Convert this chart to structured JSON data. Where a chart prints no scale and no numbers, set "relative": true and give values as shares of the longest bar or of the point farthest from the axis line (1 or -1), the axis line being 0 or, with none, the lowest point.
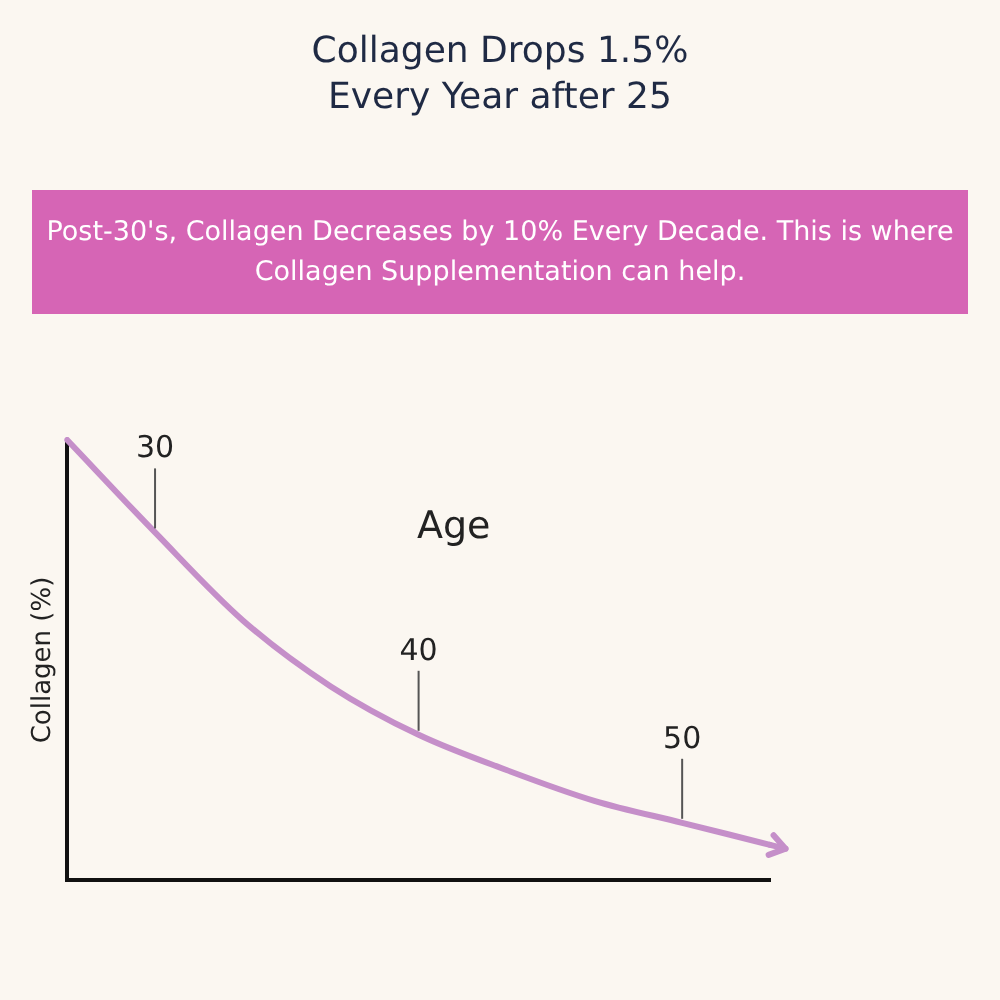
{
  "chart_data": {
    "type": "line",
    "title": "Collagen Drops 1.5% Every Year after 25",
    "subtitle": "Post-30's, Collagen Decreases by 10% Every Decade. This is where Collagen Supplementation can help.",
    "xlabel": "Age",
    "ylabel": "Collagen (%)",
    "relative": true,
    "categories": [
      null,
      null,
      null,
      null,
      null,
      null,
      null,
      null,
      null
    ],
    "series": [
      {
        "color": "#c58fc9",
        "values": [
          1.0,
          0.79,
          0.59,
          0.44,
          0.33,
          0.25,
          0.18,
          0.13,
          0.08
        ]
      }
    ],
    "annotations": [
      "30",
      "40",
      "50"
    ],
    "grid": false,
    "legend": false,
    "marker": "none",
    "line_style": "solid",
    "tick_labels": false
  }
}
